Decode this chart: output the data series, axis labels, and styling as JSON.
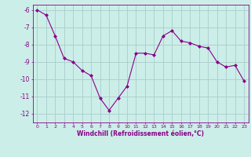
{
  "x": [
    0,
    1,
    2,
    3,
    4,
    5,
    6,
    7,
    8,
    9,
    10,
    11,
    12,
    13,
    14,
    15,
    16,
    17,
    18,
    19,
    20,
    21,
    22,
    23
  ],
  "y": [
    -6.0,
    -6.3,
    -7.5,
    -8.8,
    -9.0,
    -9.5,
    -9.8,
    -11.1,
    -11.8,
    -11.1,
    -10.4,
    -8.5,
    -8.5,
    -8.6,
    -7.5,
    -7.2,
    -7.8,
    -7.9,
    -8.1,
    -8.2,
    -9.0,
    -9.3,
    -9.2,
    -10.1
  ],
  "ylim": [
    -12.5,
    -5.7
  ],
  "yticks": [
    -6,
    -7,
    -8,
    -9,
    -10,
    -11,
    -12
  ],
  "xlim": [
    -0.5,
    23.5
  ],
  "xticks": [
    0,
    1,
    2,
    3,
    4,
    5,
    6,
    7,
    8,
    9,
    10,
    11,
    12,
    13,
    14,
    15,
    16,
    17,
    18,
    19,
    20,
    21,
    22,
    23
  ],
  "line_color": "#880088",
  "marker": "D",
  "marker_size": 2.0,
  "bg_color": "#cceee8",
  "grid_color": "#aacccc",
  "xlabel": "Windchill (Refroidissement éolien,°C)",
  "xlabel_color": "#880088",
  "tick_label_color": "#880088",
  "axis_color": "#880088",
  "ytick_labels": [
    "-6",
    "-7",
    "-8",
    "-9",
    "-10",
    "-11",
    "-12"
  ],
  "xtick_labels": [
    "0",
    "1",
    "2",
    "3",
    "4",
    "5",
    "6",
    "7",
    "8",
    "9",
    "10",
    "11",
    "12",
    "13",
    "14",
    "15",
    "16",
    "17",
    "18",
    "19",
    "20",
    "21",
    "22",
    "23"
  ]
}
